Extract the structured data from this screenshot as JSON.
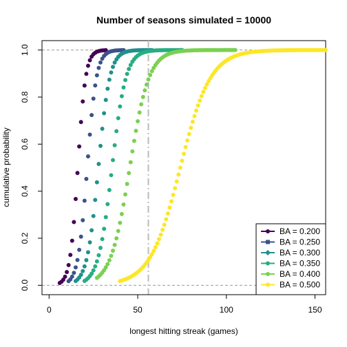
{
  "chart_data": {
    "type": "scatter",
    "title": "Number of seasons simulated = 10000",
    "xlabel": "longest hitting streak (games)",
    "ylabel": "cumulative probability",
    "xlim": [
      -4,
      156
    ],
    "ylim": [
      -0.04,
      1.04
    ],
    "x_ticks": [
      0,
      50,
      100,
      150
    ],
    "y_ticks": [
      0.0,
      0.2,
      0.4,
      0.6,
      0.8,
      1.0
    ],
    "x_tick_labels": [
      "0",
      "50",
      "100",
      "150"
    ],
    "y_tick_labels": [
      "0.0",
      "0.2",
      "0.4",
      "0.6",
      "0.8",
      "1.0"
    ],
    "reference_lines": {
      "horizontal": [
        0,
        1
      ],
      "vertical": [
        56
      ]
    },
    "legend": {
      "position": "bottom-right"
    },
    "grid": false,
    "series": [
      {
        "name": "BA = 0.200",
        "color": "#440154",
        "start": 6,
        "end": 32,
        "median": 16.2,
        "scale": 2.2
      },
      {
        "name": "BA = 0.250",
        "color": "#3B528B",
        "start": 11,
        "end": 42,
        "median": 21.5,
        "scale": 2.6
      },
      {
        "name": "BA = 0.300",
        "color": "#21908C",
        "start": 15,
        "end": 58,
        "median": 27.8,
        "scale": 3.2
      },
      {
        "name": "BA = 0.350",
        "color": "#27AD81",
        "start": 20,
        "end": 75,
        "median": 35.5,
        "scale": 3.9
      },
      {
        "name": "BA = 0.400",
        "color": "#7AD151",
        "start": 27,
        "end": 105,
        "median": 45.5,
        "scale": 5.4
      },
      {
        "name": "BA = 0.500",
        "color": "#FDE725",
        "start": 40,
        "end": 156,
        "median": 74.0,
        "scale": 8.5
      }
    ]
  }
}
